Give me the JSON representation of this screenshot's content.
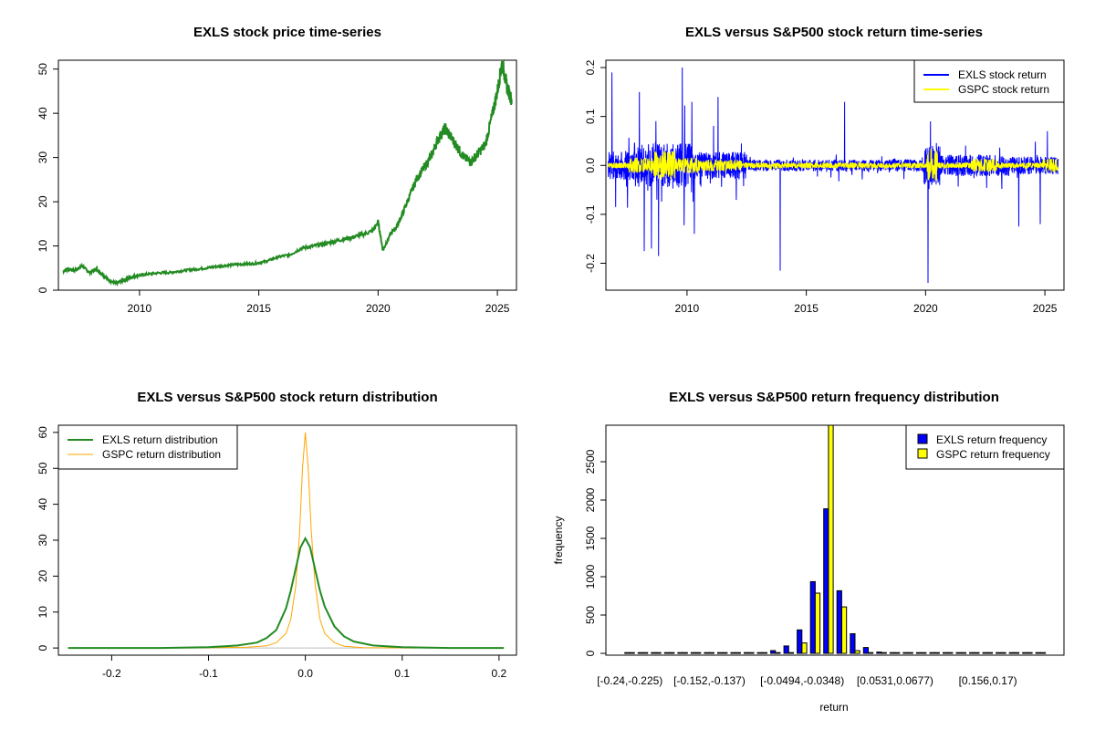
{
  "colors": {
    "green": "#228B22",
    "blue": "#0000FF",
    "yellow": "#FFFF00",
    "orange": "#FFA500",
    "grey": "#BEBEBE"
  },
  "chart_data": [
    {
      "id": "price",
      "type": "line",
      "title": "EXLS stock price time-series",
      "xlabel": "",
      "ylabel": "",
      "xlim": [
        2006.6,
        2025.8
      ],
      "ylim": [
        0,
        52
      ],
      "x_ticks": [
        2010,
        2015,
        2020,
        2025
      ],
      "y_ticks": [
        0,
        10,
        20,
        30,
        40,
        50
      ],
      "series": [
        {
          "x": [
            2006.8,
            2007.0,
            2007.3,
            2007.6,
            2007.9,
            2008.2,
            2008.5,
            2008.8,
            2009.0,
            2009.3,
            2009.6,
            2009.9,
            2010.3,
            2010.8,
            2011.3,
            2011.8,
            2012.3,
            2012.8,
            2013.3,
            2013.8,
            2014.3,
            2014.8,
            2015.3,
            2015.8,
            2016.3,
            2016.8,
            2017.3,
            2017.8,
            2018.3,
            2018.8,
            2019.3,
            2019.8,
            2020.0,
            2020.2,
            2020.5,
            2020.8,
            2021.0,
            2021.3,
            2021.6,
            2021.9,
            2022.2,
            2022.5,
            2022.8,
            2023.0,
            2023.3,
            2023.6,
            2023.9,
            2024.2,
            2024.5,
            2024.8,
            2025.0,
            2025.2,
            2025.4,
            2025.6
          ],
          "y": [
            4.2,
            4.8,
            4.5,
            5.5,
            4.0,
            4.8,
            3.2,
            2.0,
            1.6,
            2.2,
            2.8,
            3.3,
            3.6,
            3.9,
            4.0,
            4.4,
            4.7,
            5.0,
            5.4,
            5.7,
            5.9,
            6.0,
            6.5,
            7.5,
            8.0,
            9.5,
            10.0,
            10.5,
            11.2,
            11.8,
            12.5,
            13.5,
            15.5,
            9.0,
            12.5,
            14.5,
            17.0,
            21.0,
            25.0,
            27.5,
            30.0,
            34.0,
            36.5,
            35.0,
            32.5,
            30.0,
            29.0,
            31.0,
            33.0,
            40.0,
            45.0,
            51.5,
            46.0,
            43.0
          ]
        }
      ]
    },
    {
      "id": "returns",
      "type": "line",
      "title": "EXLS versus S&P500 stock return time-series",
      "xlabel": "",
      "ylabel": "",
      "xlim": [
        2006.6,
        2025.8
      ],
      "ylim": [
        -0.255,
        0.215
      ],
      "x_ticks": [
        2010,
        2015,
        2020,
        2025
      ],
      "y_ticks": [
        -0.2,
        -0.1,
        0.0,
        0.1,
        0.2
      ],
      "legend": "top-right",
      "series": [
        {
          "name": "EXLS stock return",
          "color": "#0000FF"
        },
        {
          "name": "GSPC stock return",
          "color": "#FFFF00"
        }
      ],
      "spikes": [
        {
          "x": 2006.85,
          "y": 0.19
        },
        {
          "x": 2007.0,
          "y": -0.085
        },
        {
          "x": 2008.0,
          "y": 0.15
        },
        {
          "x": 2008.2,
          "y": -0.175
        },
        {
          "x": 2008.5,
          "y": -0.17
        },
        {
          "x": 2008.8,
          "y": -0.185
        },
        {
          "x": 2009.8,
          "y": 0.2
        },
        {
          "x": 2010.3,
          "y": -0.14
        },
        {
          "x": 2010.2,
          "y": 0.13
        },
        {
          "x": 2011.3,
          "y": 0.14
        },
        {
          "x": 2013.9,
          "y": -0.215
        },
        {
          "x": 2016.6,
          "y": 0.13
        },
        {
          "x": 2020.1,
          "y": -0.24
        },
        {
          "x": 2020.2,
          "y": 0.09
        },
        {
          "x": 2023.9,
          "y": -0.125
        },
        {
          "x": 2024.8,
          "y": -0.12
        },
        {
          "x": 2025.1,
          "y": 0.07
        }
      ]
    },
    {
      "id": "density",
      "type": "line",
      "title": "EXLS versus S&P500 stock return distribution",
      "xlabel": "",
      "ylabel": "",
      "xlim": [
        -0.255,
        0.218
      ],
      "ylim": [
        -2,
        62
      ],
      "x_ticks": [
        -0.2,
        -0.1,
        0.0,
        0.1,
        0.2
      ],
      "y_ticks": [
        0,
        10,
        20,
        30,
        40,
        50,
        60
      ],
      "legend": "top-left",
      "series": [
        {
          "name": "EXLS return distribution",
          "color": "#228B22",
          "x": [
            -0.245,
            -0.15,
            -0.1,
            -0.07,
            -0.05,
            -0.04,
            -0.03,
            -0.02,
            -0.015,
            -0.01,
            -0.005,
            0.0,
            0.005,
            0.01,
            0.015,
            0.02,
            0.03,
            0.04,
            0.05,
            0.07,
            0.1,
            0.15,
            0.205
          ],
          "y": [
            0,
            0,
            0.2,
            0.7,
            1.5,
            2.8,
            5.0,
            11.0,
            16.0,
            22.0,
            28.0,
            30.5,
            28.0,
            22.0,
            16.0,
            11.5,
            6.0,
            3.2,
            1.8,
            0.7,
            0.2,
            0,
            0
          ]
        },
        {
          "name": "GSPC return distribution",
          "color": "#FFA500",
          "x": [
            -0.12,
            -0.06,
            -0.04,
            -0.03,
            -0.02,
            -0.015,
            -0.01,
            -0.006,
            -0.003,
            0.0,
            0.003,
            0.006,
            0.01,
            0.015,
            0.02,
            0.03,
            0.04,
            0.06,
            0.115
          ],
          "y": [
            0,
            0.2,
            0.6,
            1.5,
            4.0,
            8.0,
            17.0,
            32.0,
            50.0,
            60.0,
            50.0,
            33.0,
            18.0,
            8.0,
            4.0,
            1.5,
            0.5,
            0.1,
            0
          ]
        }
      ]
    },
    {
      "id": "histogram",
      "type": "bar",
      "title": "EXLS versus S&P500 return frequency distribution",
      "xlabel": "return",
      "ylabel": "frequency",
      "ylim": [
        0,
        3000
      ],
      "y_ticks": [
        0,
        500,
        1000,
        1500,
        2000,
        2500
      ],
      "legend": "top-right",
      "x_tick_labels": [
        {
          "label": "[-0.24,-0.225)",
          "index": 0
        },
        {
          "label": "[-0.152,-0.137)",
          "index": 6
        },
        {
          "label": "[-0.0494,-0.0348)",
          "index": 13
        },
        {
          "label": "[0.0531,0.0677)",
          "index": 20
        },
        {
          "label": "[0.156,0.17)",
          "index": 27
        }
      ],
      "series": [
        {
          "name": "EXLS return frequency",
          "color": "#0000FF",
          "values": [
            2,
            1,
            1,
            2,
            3,
            4,
            7,
            9,
            13,
            20,
            32,
            60,
            120,
            330,
            960,
            1910,
            840,
            280,
            100,
            40,
            25,
            15,
            10,
            8,
            5,
            4,
            3,
            2,
            1,
            1,
            1,
            1
          ]
        },
        {
          "name": "GSPC return frequency",
          "color": "#FFFF00",
          "values": [
            0,
            0,
            0,
            0,
            0,
            0,
            0,
            0,
            0,
            3,
            6,
            12,
            20,
            160,
            810,
            3000,
            630,
            60,
            20,
            4,
            1,
            0,
            0,
            0,
            0,
            0,
            0,
            0,
            0,
            0,
            0,
            0
          ]
        }
      ]
    }
  ]
}
